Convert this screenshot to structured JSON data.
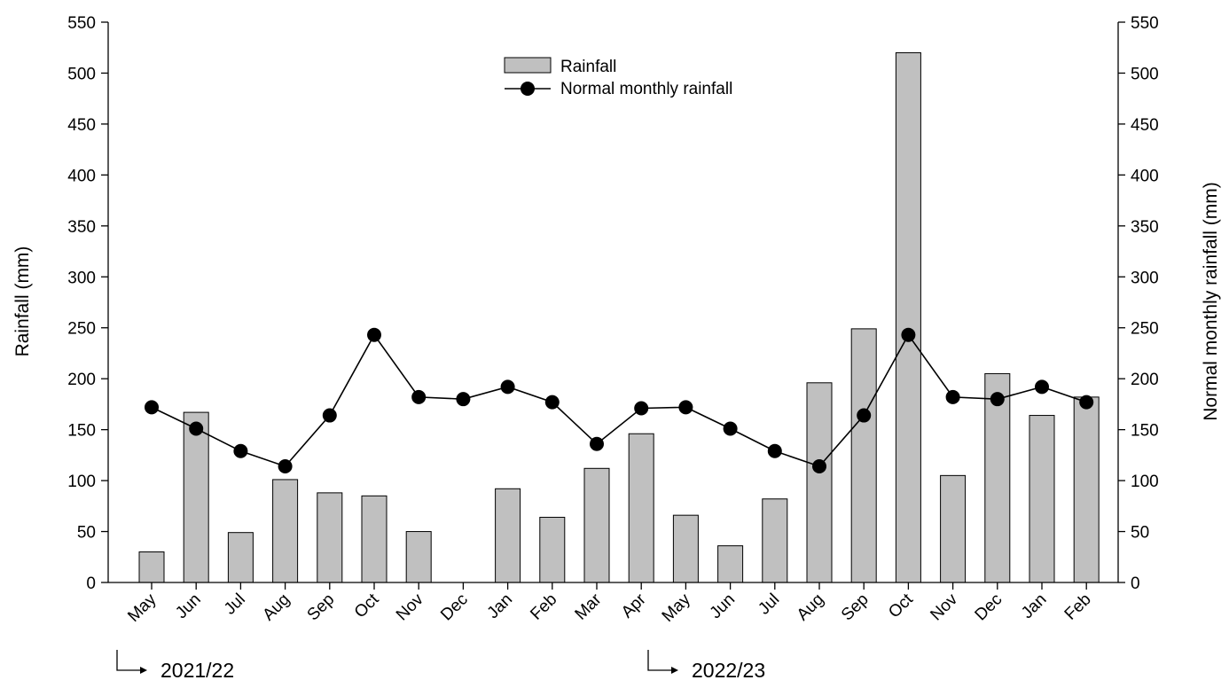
{
  "chart_data": {
    "type": "bar",
    "title": "",
    "categories": [
      "May",
      "Jun",
      "Jul",
      "Aug",
      "Sep",
      "Oct",
      "Nov",
      "Dec",
      "Jan",
      "Feb",
      "Mar",
      "Apr",
      "May",
      "Jun",
      "Jul",
      "Aug",
      "Sep",
      "Oct",
      "Nov",
      "Dec",
      "Jan",
      "Feb"
    ],
    "series": [
      {
        "name": "Rainfall",
        "type": "bar",
        "axis": "left",
        "color": "#c0c0c0",
        "values": [
          30,
          167,
          49,
          101,
          88,
          85,
          50,
          0,
          92,
          64,
          112,
          146,
          66,
          36,
          82,
          196,
          249,
          520,
          105,
          205,
          164,
          182
        ]
      },
      {
        "name": "Normal monthly rainfall",
        "type": "line",
        "marker": "circle",
        "axis": "right",
        "color": "#000000",
        "values": [
          172,
          151,
          129,
          114,
          164,
          243,
          182,
          180,
          192,
          177,
          136,
          171,
          172,
          151,
          129,
          114,
          164,
          243,
          182,
          180,
          192,
          177
        ]
      }
    ],
    "ylabel": "Rainfall (mm)",
    "ylabel_right": "Normal monthly rainfall (mm)",
    "xlabel": "",
    "ylim": [
      0,
      550
    ],
    "ylim_right": [
      0,
      550
    ],
    "yticks": [
      "0",
      "50",
      "100",
      "150",
      "200",
      "250",
      "300",
      "350",
      "400",
      "450",
      "500",
      "550"
    ],
    "grid": false,
    "legend": "top-center",
    "annotations": [
      {
        "text": "2021/22",
        "start_index": 0
      },
      {
        "text": "2022/23",
        "start_index": 12
      }
    ]
  }
}
